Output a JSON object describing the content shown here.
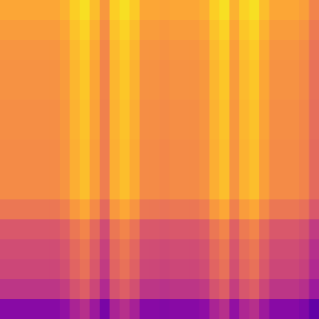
{
  "chart_data": {
    "type": "heatmap",
    "color": "plasma",
    "tick_labels": false,
    "xlim": [
      0,
      32
    ],
    "ylim": [
      0,
      16
    ],
    "color_range": [
      0,
      100
    ],
    "cells": [
      [
        80,
        80,
        80,
        80,
        80,
        80,
        83,
        90,
        94,
        86,
        76,
        90,
        94,
        89,
        80,
        80,
        79,
        80,
        80,
        80,
        82,
        90,
        94,
        83,
        91,
        94,
        86,
        80,
        80,
        80,
        78,
        70
      ],
      [
        77,
        77,
        77,
        77,
        77,
        77,
        80,
        87,
        91,
        83,
        73,
        87,
        91,
        86,
        77,
        77,
        76,
        77,
        77,
        77,
        79,
        87,
        91,
        80,
        88,
        91,
        83,
        77,
        77,
        77,
        75,
        67
      ],
      [
        75,
        75,
        75,
        75,
        75,
        75,
        78,
        85,
        89,
        81,
        71,
        85,
        89,
        84,
        75,
        75,
        74,
        75,
        75,
        75,
        77,
        85,
        89,
        78,
        86,
        89,
        81,
        75,
        75,
        75,
        73,
        65
      ],
      [
        74,
        74,
        74,
        74,
        74,
        74,
        77,
        84,
        88,
        80,
        70,
        84,
        88,
        83,
        74,
        74,
        73,
        74,
        74,
        74,
        76,
        84,
        88,
        77,
        85,
        88,
        80,
        74,
        74,
        74,
        72,
        64
      ],
      [
        74,
        74,
        74,
        74,
        74,
        74,
        77,
        84,
        88,
        80,
        70,
        84,
        88,
        83,
        74,
        74,
        73,
        74,
        74,
        74,
        76,
        84,
        88,
        77,
        85,
        88,
        80,
        74,
        74,
        74,
        72,
        64
      ],
      [
        73,
        73,
        73,
        73,
        73,
        73,
        76,
        83,
        87,
        79,
        69,
        83,
        87,
        82,
        73,
        73,
        72,
        73,
        73,
        73,
        75,
        83,
        87,
        76,
        84,
        87,
        79,
        73,
        73,
        73,
        71,
        63
      ],
      [
        73,
        73,
        73,
        73,
        73,
        73,
        76,
        83,
        87,
        79,
        69,
        83,
        87,
        82,
        73,
        73,
        72,
        73,
        73,
        73,
        75,
        83,
        87,
        76,
        84,
        87,
        79,
        73,
        73,
        73,
        71,
        63
      ],
      [
        72,
        72,
        72,
        72,
        72,
        72,
        75,
        82,
        86,
        78,
        68,
        82,
        86,
        81,
        72,
        72,
        71,
        72,
        72,
        72,
        74,
        82,
        86,
        75,
        83,
        86,
        78,
        72,
        72,
        72,
        70,
        62
      ],
      [
        72,
        72,
        72,
        72,
        72,
        72,
        75,
        82,
        86,
        78,
        68,
        82,
        86,
        81,
        72,
        72,
        71,
        72,
        72,
        72,
        74,
        82,
        86,
        75,
        83,
        86,
        78,
        72,
        72,
        72,
        70,
        62
      ],
      [
        72,
        72,
        72,
        72,
        72,
        72,
        75,
        82,
        86,
        78,
        68,
        82,
        86,
        81,
        72,
        72,
        71,
        72,
        72,
        72,
        74,
        82,
        86,
        75,
        83,
        86,
        78,
        72,
        72,
        72,
        70,
        62
      ],
      [
        66,
        66,
        66,
        66,
        66,
        66,
        69,
        76,
        80,
        72,
        62,
        76,
        80,
        75,
        66,
        66,
        65,
        66,
        66,
        66,
        68,
        76,
        80,
        69,
        77,
        80,
        72,
        66,
        66,
        66,
        64,
        56
      ],
      [
        56,
        56,
        56,
        56,
        56,
        56,
        59,
        66,
        70,
        62,
        52,
        66,
        70,
        65,
        56,
        56,
        55,
        56,
        56,
        56,
        58,
        66,
        70,
        59,
        67,
        70,
        62,
        56,
        56,
        56,
        54,
        46
      ],
      [
        52,
        52,
        52,
        52,
        52,
        52,
        55,
        62,
        66,
        58,
        48,
        62,
        66,
        61,
        52,
        52,
        51,
        52,
        52,
        52,
        54,
        62,
        66,
        55,
        63,
        66,
        58,
        52,
        52,
        52,
        50,
        42
      ],
      [
        50,
        50,
        50,
        50,
        50,
        50,
        53,
        60,
        64,
        56,
        46,
        60,
        64,
        59,
        50,
        50,
        49,
        50,
        50,
        50,
        52,
        60,
        64,
        53,
        61,
        64,
        56,
        50,
        50,
        50,
        48,
        40
      ],
      [
        44,
        44,
        44,
        44,
        44,
        44,
        47,
        54,
        58,
        50,
        40,
        54,
        58,
        53,
        44,
        44,
        43,
        44,
        44,
        44,
        46,
        54,
        58,
        47,
        55,
        58,
        50,
        44,
        44,
        44,
        42,
        34
      ],
      [
        28,
        28,
        28,
        28,
        28,
        28,
        31,
        38,
        42,
        34,
        24,
        38,
        42,
        37,
        28,
        28,
        27,
        28,
        28,
        28,
        30,
        38,
        42,
        31,
        39,
        42,
        34,
        28,
        28,
        28,
        26,
        18
      ]
    ]
  }
}
